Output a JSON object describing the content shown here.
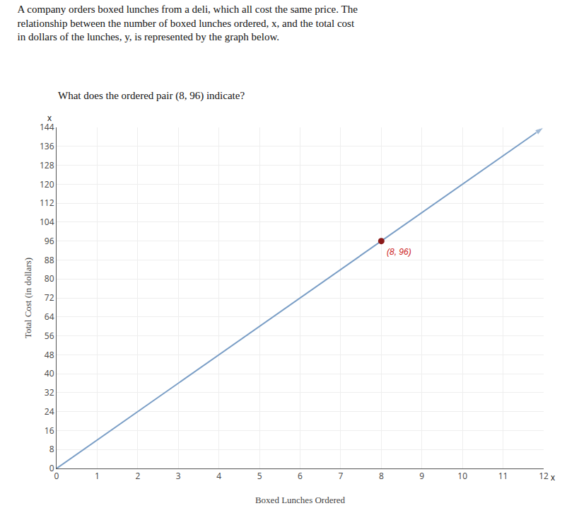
{
  "chart_data": {
    "type": "line",
    "title": "A company orders boxed lunches from a deli, which all cost the same price. The\nrelationship between the number of boxed lunches ordered, x, and the total cost\nin dollars of the lunches, y, is represented by the graph below.",
    "subtitle": "What does the ordered pair (8, 96) indicate?",
    "xlabel": "Boxed Lunches Ordered",
    "ylabel": "Total Cost (in dollars)",
    "xlim": [
      0,
      12
    ],
    "ylim": [
      0,
      144
    ],
    "xticks": [
      0,
      1,
      2,
      3,
      4,
      5,
      6,
      7,
      8,
      9,
      10,
      11,
      12
    ],
    "yticks": [
      0,
      8,
      16,
      24,
      32,
      40,
      48,
      56,
      64,
      72,
      80,
      88,
      96,
      104,
      112,
      120,
      128,
      136,
      144
    ],
    "grid": true,
    "series": [
      {
        "type": "line",
        "color": "#7a9ec6",
        "marker": "arrow",
        "x": [
          0,
          12
        ],
        "values": [
          0,
          144
        ]
      },
      {
        "type": "scatter",
        "color": "#8b1a1a",
        "marker": "circle",
        "x": [
          8
        ],
        "values": [
          96
        ]
      }
    ],
    "annotations": [
      {
        "text": "(8, 96)",
        "x": 8,
        "y": 96,
        "color": "#cc2222"
      },
      {
        "text": "x",
        "x": 0,
        "y": 144
      },
      {
        "text": "x",
        "x": 12,
        "y": 0
      }
    ]
  }
}
